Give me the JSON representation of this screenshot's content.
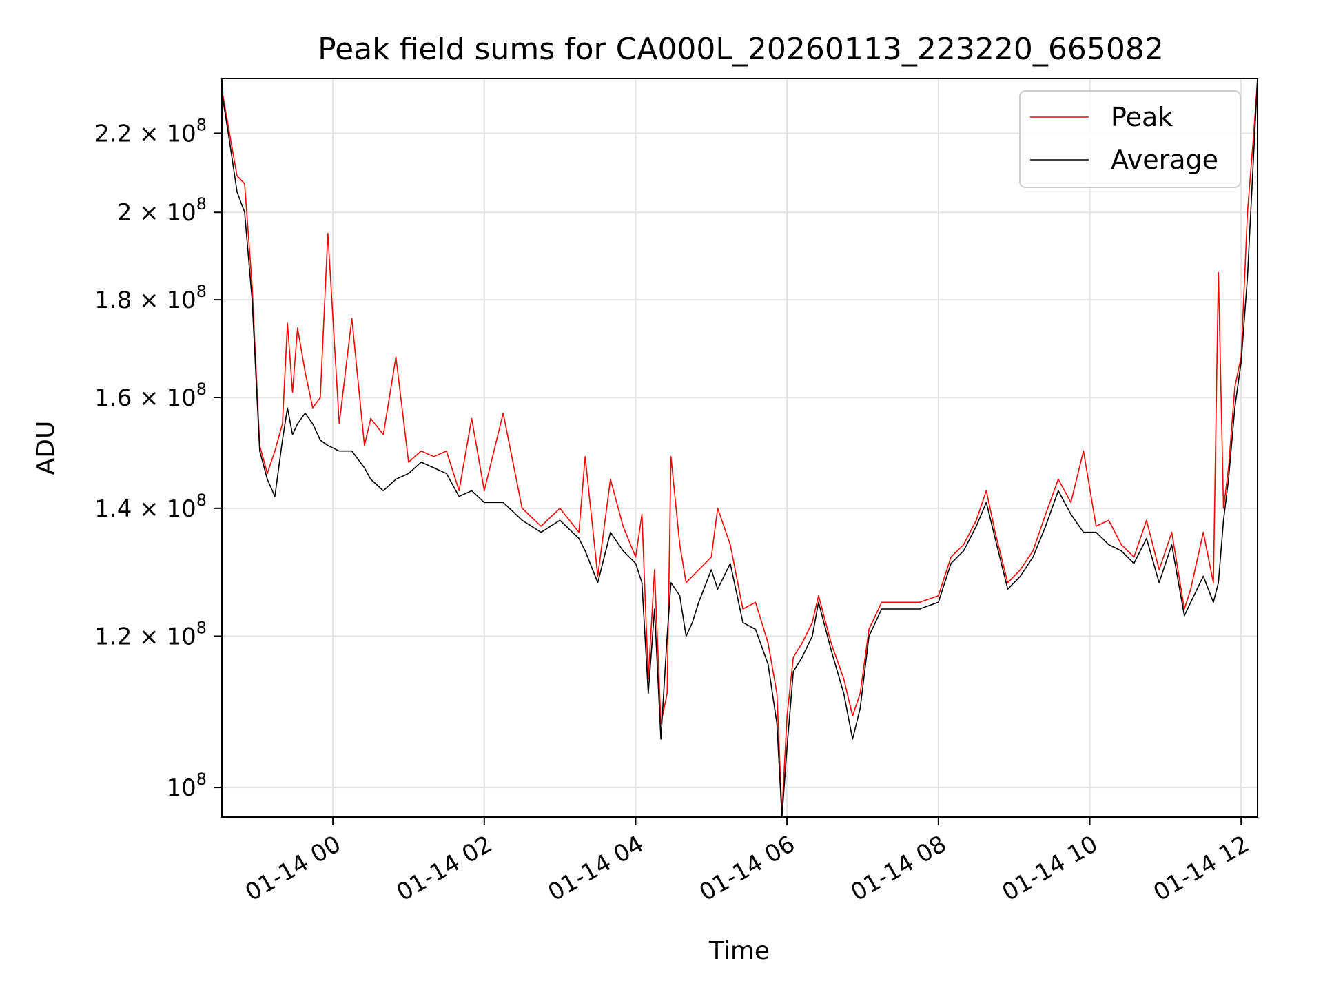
{
  "chart_data": {
    "type": "line",
    "title": "Peak field sums for CA000L_20260113_223220_665082",
    "xlabel": "Time",
    "ylabel": "ADU",
    "yscale": "log",
    "grid": true,
    "legend_position": "top-right",
    "xlim": [
      "2026-01-13 22:32",
      "2026-01-14 12:13"
    ],
    "ylim": [
      96500000,
      235000000
    ],
    "x_ticks": [
      {
        "value": "2026-01-14 00:00",
        "label": "01-14 00"
      },
      {
        "value": "2026-01-14 02:00",
        "label": "01-14 02"
      },
      {
        "value": "2026-01-14 04:00",
        "label": "01-14 04"
      },
      {
        "value": "2026-01-14 06:00",
        "label": "01-14 06"
      },
      {
        "value": "2026-01-14 08:00",
        "label": "01-14 08"
      },
      {
        "value": "2026-01-14 10:00",
        "label": "01-14 10"
      },
      {
        "value": "2026-01-14 12:00",
        "label": "01-14 12"
      }
    ],
    "y_ticks": [
      {
        "value": 100000000,
        "mantissa": "",
        "exponent": "8"
      },
      {
        "value": 120000000,
        "mantissa": "1.2",
        "exponent": "8"
      },
      {
        "value": 140000000,
        "mantissa": "1.4",
        "exponent": "8"
      },
      {
        "value": 160000000,
        "mantissa": "1.6",
        "exponent": "8"
      },
      {
        "value": 180000000,
        "mantissa": "1.8",
        "exponent": "8"
      },
      {
        "value": 200000000,
        "mantissa": "2",
        "exponent": "8"
      },
      {
        "value": 220000000,
        "mantissa": "2.2",
        "exponent": "8"
      }
    ],
    "series": [
      {
        "name": "Peak",
        "color": "#ff0000",
        "x": [
          "2026-01-13 22:32",
          "2026-01-13 22:38",
          "2026-01-13 22:44",
          "2026-01-13 22:50",
          "2026-01-13 22:56",
          "2026-01-13 23:02",
          "2026-01-13 23:08",
          "2026-01-13 23:14",
          "2026-01-13 23:20",
          "2026-01-13 23:24",
          "2026-01-13 23:28",
          "2026-01-13 23:32",
          "2026-01-13 23:38",
          "2026-01-13 23:44",
          "2026-01-13 23:50",
          "2026-01-13 23:56",
          "2026-01-14 00:05",
          "2026-01-14 00:15",
          "2026-01-14 00:25",
          "2026-01-14 00:30",
          "2026-01-14 00:40",
          "2026-01-14 00:50",
          "2026-01-14 01:00",
          "2026-01-14 01:10",
          "2026-01-14 01:20",
          "2026-01-14 01:30",
          "2026-01-14 01:40",
          "2026-01-14 01:50",
          "2026-01-14 02:00",
          "2026-01-14 02:15",
          "2026-01-14 02:30",
          "2026-01-14 02:45",
          "2026-01-14 03:00",
          "2026-01-14 03:15",
          "2026-01-14 03:20",
          "2026-01-14 03:30",
          "2026-01-14 03:40",
          "2026-01-14 03:50",
          "2026-01-14 04:00",
          "2026-01-14 04:05",
          "2026-01-14 04:10",
          "2026-01-14 04:15",
          "2026-01-14 04:20",
          "2026-01-14 04:25",
          "2026-01-14 04:28",
          "2026-01-14 04:35",
          "2026-01-14 04:40",
          "2026-01-14 04:45",
          "2026-01-14 04:50",
          "2026-01-14 05:00",
          "2026-01-14 05:05",
          "2026-01-14 05:15",
          "2026-01-14 05:25",
          "2026-01-14 05:35",
          "2026-01-14 05:45",
          "2026-01-14 05:52",
          "2026-01-14 05:56",
          "2026-01-14 06:00",
          "2026-01-14 06:05",
          "2026-01-14 06:12",
          "2026-01-14 06:20",
          "2026-01-14 06:25",
          "2026-01-14 06:35",
          "2026-01-14 06:45",
          "2026-01-14 06:52",
          "2026-01-14 06:58",
          "2026-01-14 07:05",
          "2026-01-14 07:15",
          "2026-01-14 07:30",
          "2026-01-14 07:45",
          "2026-01-14 08:00",
          "2026-01-14 08:10",
          "2026-01-14 08:20",
          "2026-01-14 08:30",
          "2026-01-14 08:38",
          "2026-01-14 08:45",
          "2026-01-14 08:55",
          "2026-01-14 09:05",
          "2026-01-14 09:15",
          "2026-01-14 09:25",
          "2026-01-14 09:35",
          "2026-01-14 09:45",
          "2026-01-14 09:55",
          "2026-01-14 10:05",
          "2026-01-14 10:15",
          "2026-01-14 10:25",
          "2026-01-14 10:35",
          "2026-01-14 10:45",
          "2026-01-14 10:55",
          "2026-01-14 11:05",
          "2026-01-14 11:15",
          "2026-01-14 11:20",
          "2026-01-14 11:30",
          "2026-01-14 11:38",
          "2026-01-14 11:42",
          "2026-01-14 11:46",
          "2026-01-14 11:50",
          "2026-01-14 11:55",
          "2026-01-14 12:00",
          "2026-01-14 12:05",
          "2026-01-14 12:10",
          "2026-01-14 12:13"
        ],
        "values": [
          232000000,
          220000000,
          209000000,
          207000000,
          183000000,
          151000000,
          146000000,
          150000000,
          155000000,
          175000000,
          161000000,
          174000000,
          165000000,
          158000000,
          160000000,
          195000000,
          155000000,
          176000000,
          151000000,
          156000000,
          153000000,
          168000000,
          148000000,
          150000000,
          149000000,
          150000000,
          143000000,
          156000000,
          143000000,
          157000000,
          140000000,
          137000000,
          140000000,
          136000000,
          149000000,
          129000000,
          145000000,
          137000000,
          132000000,
          139000000,
          114000000,
          130000000,
          108000000,
          112000000,
          149000000,
          134000000,
          128000000,
          129000000,
          130000000,
          132000000,
          140000000,
          134000000,
          124000000,
          125000000,
          119000000,
          112000000,
          97000000,
          109000000,
          117000000,
          119000000,
          122000000,
          126000000,
          119000000,
          114000000,
          109000000,
          112000000,
          121000000,
          125000000,
          125000000,
          125000000,
          126000000,
          132000000,
          134000000,
          138000000,
          143000000,
          136000000,
          128000000,
          130000000,
          133000000,
          139000000,
          145000000,
          141000000,
          150000000,
          137000000,
          138000000,
          134000000,
          132000000,
          138000000,
          130000000,
          136000000,
          124000000,
          127000000,
          136000000,
          128000000,
          186000000,
          140000000,
          147000000,
          162000000,
          168000000,
          200000000,
          220000000,
          235000000
        ]
      },
      {
        "name": "Average",
        "color": "#000000",
        "x": [
          "2026-01-13 22:32",
          "2026-01-13 22:38",
          "2026-01-13 22:44",
          "2026-01-13 22:50",
          "2026-01-13 22:56",
          "2026-01-13 23:02",
          "2026-01-13 23:08",
          "2026-01-13 23:14",
          "2026-01-13 23:20",
          "2026-01-13 23:24",
          "2026-01-13 23:28",
          "2026-01-13 23:32",
          "2026-01-13 23:38",
          "2026-01-13 23:44",
          "2026-01-13 23:50",
          "2026-01-13 23:56",
          "2026-01-14 00:05",
          "2026-01-14 00:15",
          "2026-01-14 00:25",
          "2026-01-14 00:30",
          "2026-01-14 00:40",
          "2026-01-14 00:50",
          "2026-01-14 01:00",
          "2026-01-14 01:10",
          "2026-01-14 01:20",
          "2026-01-14 01:30",
          "2026-01-14 01:40",
          "2026-01-14 01:50",
          "2026-01-14 02:00",
          "2026-01-14 02:15",
          "2026-01-14 02:30",
          "2026-01-14 02:45",
          "2026-01-14 03:00",
          "2026-01-14 03:15",
          "2026-01-14 03:20",
          "2026-01-14 03:30",
          "2026-01-14 03:40",
          "2026-01-14 03:50",
          "2026-01-14 04:00",
          "2026-01-14 04:05",
          "2026-01-14 04:10",
          "2026-01-14 04:15",
          "2026-01-14 04:20",
          "2026-01-14 04:25",
          "2026-01-14 04:28",
          "2026-01-14 04:35",
          "2026-01-14 04:40",
          "2026-01-14 04:45",
          "2026-01-14 04:50",
          "2026-01-14 05:00",
          "2026-01-14 05:05",
          "2026-01-14 05:15",
          "2026-01-14 05:25",
          "2026-01-14 05:35",
          "2026-01-14 05:45",
          "2026-01-14 05:52",
          "2026-01-14 05:56",
          "2026-01-14 06:00",
          "2026-01-14 06:05",
          "2026-01-14 06:12",
          "2026-01-14 06:20",
          "2026-01-14 06:25",
          "2026-01-14 06:35",
          "2026-01-14 06:45",
          "2026-01-14 06:52",
          "2026-01-14 06:58",
          "2026-01-14 07:05",
          "2026-01-14 07:15",
          "2026-01-14 07:30",
          "2026-01-14 07:45",
          "2026-01-14 08:00",
          "2026-01-14 08:10",
          "2026-01-14 08:20",
          "2026-01-14 08:30",
          "2026-01-14 08:38",
          "2026-01-14 08:45",
          "2026-01-14 08:55",
          "2026-01-14 09:05",
          "2026-01-14 09:15",
          "2026-01-14 09:25",
          "2026-01-14 09:35",
          "2026-01-14 09:45",
          "2026-01-14 09:55",
          "2026-01-14 10:05",
          "2026-01-14 10:15",
          "2026-01-14 10:25",
          "2026-01-14 10:35",
          "2026-01-14 10:45",
          "2026-01-14 10:55",
          "2026-01-14 11:05",
          "2026-01-14 11:15",
          "2026-01-14 11:20",
          "2026-01-14 11:30",
          "2026-01-14 11:38",
          "2026-01-14 11:42",
          "2026-01-14 11:46",
          "2026-01-14 11:50",
          "2026-01-14 11:55",
          "2026-01-14 12:00",
          "2026-01-14 12:05",
          "2026-01-14 12:10",
          "2026-01-14 12:13"
        ],
        "values": [
          231000000,
          218000000,
          205000000,
          200000000,
          180000000,
          150000000,
          145000000,
          142000000,
          152000000,
          158000000,
          153000000,
          155000000,
          157000000,
          155000000,
          152000000,
          151000000,
          150000000,
          150000000,
          147000000,
          145000000,
          143000000,
          145000000,
          146000000,
          148000000,
          147000000,
          146000000,
          142000000,
          143000000,
          141000000,
          141000000,
          138000000,
          136000000,
          138000000,
          135000000,
          133000000,
          128000000,
          136000000,
          133000000,
          131000000,
          128000000,
          112000000,
          124000000,
          106000000,
          120000000,
          128000000,
          126000000,
          120000000,
          122000000,
          125000000,
          130000000,
          127000000,
          131000000,
          122000000,
          121000000,
          116000000,
          108000000,
          96500000,
          105000000,
          115000000,
          117000000,
          120000000,
          125000000,
          118000000,
          112000000,
          106000000,
          110000000,
          120000000,
          124000000,
          124000000,
          124000000,
          125000000,
          131000000,
          133000000,
          137000000,
          141000000,
          135000000,
          127000000,
          129000000,
          132000000,
          137000000,
          143000000,
          139000000,
          136000000,
          136000000,
          134000000,
          133000000,
          131000000,
          135000000,
          128000000,
          134000000,
          123000000,
          125000000,
          129000000,
          125000000,
          128000000,
          138000000,
          145000000,
          158000000,
          167000000,
          185000000,
          215000000,
          235000000
        ]
      }
    ]
  }
}
